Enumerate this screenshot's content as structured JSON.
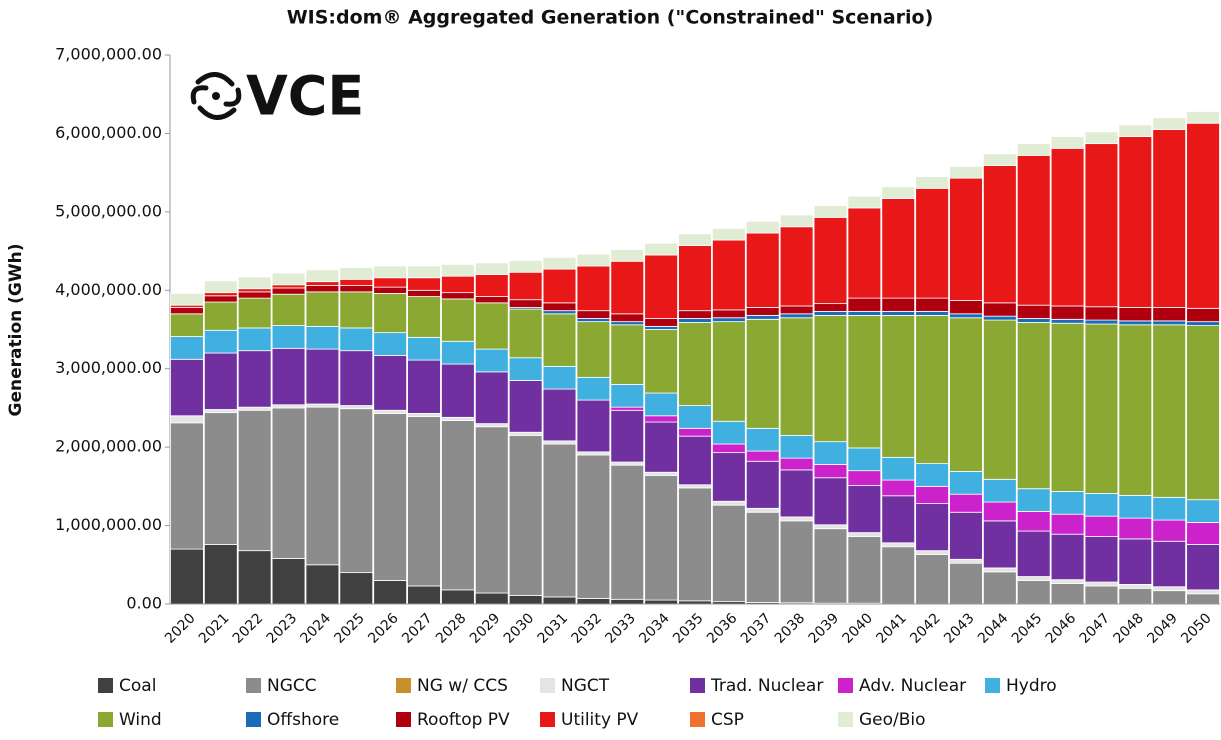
{
  "chart_data": {
    "type": "stacked_bar",
    "title": "WIS:dom® Aggregated Generation (\"Constrained\" Scenario)",
    "logo": "VCE",
    "y_label": "Generation (GWh)",
    "categories": [
      "2020",
      "2021",
      "2022",
      "2023",
      "2024",
      "2025",
      "2026",
      "2027",
      "2028",
      "2029",
      "2030",
      "2031",
      "2032",
      "2033",
      "2034",
      "2035",
      "2036",
      "2037",
      "2038",
      "2039",
      "2040",
      "2041",
      "2042",
      "2043",
      "2044",
      "2045",
      "2046",
      "2047",
      "2048",
      "2049",
      "2050"
    ],
    "ylim": [
      0,
      7000000
    ],
    "yticks": [
      {
        "value": 0,
        "label": "0.00"
      },
      {
        "value": 1000000,
        "label": "1,000,000.00"
      },
      {
        "value": 2000000,
        "label": "2,000,000.00"
      },
      {
        "value": 3000000,
        "label": "3,000,000.00"
      },
      {
        "value": 4000000,
        "label": "4,000,000.00"
      },
      {
        "value": 5000000,
        "label": "5,000,000.00"
      },
      {
        "value": 6000000,
        "label": "6,000,000.00"
      },
      {
        "value": 7000000,
        "label": "7,000,000.00"
      }
    ],
    "series": [
      {
        "name": "Coal",
        "color": "#404040",
        "values": [
          700000,
          760000,
          680000,
          580000,
          500000,
          400000,
          300000,
          230000,
          180000,
          140000,
          110000,
          90000,
          70000,
          60000,
          50000,
          40000,
          30000,
          20000,
          15000,
          10000,
          10000,
          0,
          0,
          0,
          0,
          0,
          0,
          0,
          0,
          0,
          0
        ]
      },
      {
        "name": "NGCC",
        "color": "#8c8c8c",
        "values": [
          1610000,
          1680000,
          1790000,
          1920000,
          2010000,
          2090000,
          2130000,
          2160000,
          2160000,
          2120000,
          2040000,
          1950000,
          1830000,
          1710000,
          1590000,
          1440000,
          1230000,
          1150000,
          1045000,
          950000,
          850000,
          730000,
          630000,
          520000,
          410000,
          300000,
          260000,
          230000,
          200000,
          170000,
          130000
        ]
      },
      {
        "name": "NG w/ CCS",
        "color": "#c8902a",
        "values": [
          0,
          0,
          0,
          0,
          0,
          0,
          0,
          0,
          0,
          0,
          0,
          0,
          0,
          0,
          0,
          0,
          0,
          0,
          0,
          0,
          0,
          0,
          0,
          0,
          0,
          0,
          0,
          0,
          0,
          0,
          0
        ]
      },
      {
        "name": "NGCT",
        "color": "#e4e4e4",
        "values": [
          90000,
          40000,
          40000,
          40000,
          40000,
          40000,
          40000,
          40000,
          40000,
          40000,
          40000,
          40000,
          40000,
          40000,
          40000,
          40000,
          50000,
          50000,
          50000,
          50000,
          50000,
          50000,
          50000,
          50000,
          50000,
          50000,
          50000,
          50000,
          50000,
          50000,
          50000
        ]
      },
      {
        "name": "Trad. Nuclear",
        "color": "#7030a0",
        "values": [
          720000,
          720000,
          720000,
          720000,
          700000,
          700000,
          700000,
          680000,
          680000,
          660000,
          660000,
          660000,
          660000,
          660000,
          640000,
          620000,
          620000,
          600000,
          600000,
          600000,
          600000,
          600000,
          600000,
          600000,
          600000,
          580000,
          580000,
          580000,
          580000,
          580000,
          580000
        ]
      },
      {
        "name": "Adv. Nuclear",
        "color": "#cc22cc",
        "values": [
          0,
          0,
          0,
          0,
          0,
          0,
          0,
          0,
          0,
          0,
          0,
          0,
          0,
          40000,
          80000,
          100000,
          110000,
          130000,
          150000,
          170000,
          190000,
          200000,
          220000,
          230000,
          240000,
          250000,
          255000,
          260000,
          265000,
          270000,
          280000
        ]
      },
      {
        "name": "Hydro",
        "color": "#40b0e0",
        "values": [
          290000,
          290000,
          290000,
          290000,
          290000,
          290000,
          290000,
          290000,
          290000,
          290000,
          290000,
          290000,
          290000,
          290000,
          290000,
          290000,
          290000,
          290000,
          290000,
          290000,
          290000,
          290000,
          290000,
          290000,
          290000,
          290000,
          290000,
          290000,
          290000,
          290000,
          290000
        ]
      },
      {
        "name": "Wind",
        "color": "#8aa832",
        "values": [
          290000,
          360000,
          380000,
          400000,
          440000,
          460000,
          500000,
          520000,
          540000,
          590000,
          620000,
          670000,
          710000,
          760000,
          810000,
          1060000,
          1270000,
          1390000,
          1500000,
          1610000,
          1690000,
          1810000,
          1890000,
          1960000,
          2030000,
          2120000,
          2145000,
          2160000,
          2175000,
          2200000,
          2220000
        ]
      },
      {
        "name": "Offshore",
        "color": "#1a6bb8",
        "values": [
          0,
          0,
          0,
          0,
          0,
          0,
          0,
          0,
          0,
          0,
          20000,
          40000,
          40000,
          40000,
          40000,
          50000,
          50000,
          50000,
          50000,
          50000,
          50000,
          50000,
          50000,
          50000,
          50000,
          50000,
          50000,
          50000,
          50000,
          50000,
          50000
        ]
      },
      {
        "name": "Rooftop PV",
        "color": "#b00010",
        "values": [
          80000,
          80000,
          80000,
          80000,
          80000,
          80000,
          80000,
          80000,
          80000,
          80000,
          100000,
          100000,
          100000,
          100000,
          100000,
          100000,
          100000,
          100000,
          100000,
          100000,
          170000,
          170000,
          170000,
          170000,
          170000,
          170000,
          170000,
          170000,
          170000,
          170000,
          170000
        ]
      },
      {
        "name": "Utility PV",
        "color": "#e81818",
        "values": [
          30000,
          40000,
          40000,
          40000,
          50000,
          80000,
          120000,
          160000,
          210000,
          280000,
          350000,
          430000,
          570000,
          670000,
          810000,
          830000,
          890000,
          950000,
          1010000,
          1100000,
          1150000,
          1270000,
          1400000,
          1560000,
          1750000,
          1910000,
          2010000,
          2080000,
          2180000,
          2270000,
          2360000
        ]
      },
      {
        "name": "CSP",
        "color": "#f07030",
        "values": [
          0,
          0,
          0,
          0,
          0,
          0,
          0,
          0,
          0,
          0,
          0,
          0,
          0,
          0,
          0,
          0,
          0,
          0,
          0,
          0,
          0,
          0,
          0,
          0,
          0,
          0,
          0,
          0,
          0,
          0,
          0
        ]
      },
      {
        "name": "Geo/Bio",
        "color": "#e0ecd4",
        "values": [
          150000,
          150000,
          150000,
          150000,
          150000,
          150000,
          150000,
          150000,
          150000,
          150000,
          150000,
          150000,
          150000,
          150000,
          150000,
          150000,
          150000,
          150000,
          150000,
          150000,
          150000,
          150000,
          150000,
          150000,
          150000,
          150000,
          150000,
          150000,
          150000,
          150000,
          150000
        ]
      }
    ]
  }
}
